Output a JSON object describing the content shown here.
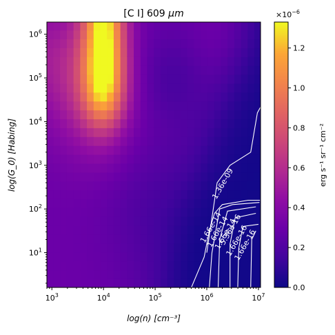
{
  "chart_data": {
    "type": "heatmap",
    "title_prefix": "[C I] 609 ",
    "title_unit": "μm",
    "xlabel": "log(n) [cm⁻³]",
    "ylabel": "log(G_0) [Habing]",
    "x_scale": "log",
    "y_scale": "log",
    "xlim": [
      800,
      11000000
    ],
    "ylim": [
      1.6,
      1900000
    ],
    "x_ticks": [
      {
        "value": 1000,
        "mantissa": "10",
        "exp": "3"
      },
      {
        "value": 10000,
        "mantissa": "10",
        "exp": "4"
      },
      {
        "value": 100000,
        "mantissa": "10",
        "exp": "5"
      },
      {
        "value": 1000000,
        "mantissa": "10",
        "exp": "6"
      },
      {
        "value": 10000000,
        "mantissa": "10",
        "exp": "7"
      }
    ],
    "y_ticks": [
      {
        "value": 10,
        "mantissa": "10",
        "exp": "1"
      },
      {
        "value": 100,
        "mantissa": "10",
        "exp": "2"
      },
      {
        "value": 1000,
        "mantissa": "10",
        "exp": "3"
      },
      {
        "value": 10000,
        "mantissa": "10",
        "exp": "4"
      },
      {
        "value": 100000,
        "mantissa": "10",
        "exp": "5"
      },
      {
        "value": 1000000,
        "mantissa": "10",
        "exp": "6"
      }
    ],
    "colormap": "plasma",
    "colorbar": {
      "label": "erg s⁻¹ sr⁻¹ cm⁻²",
      "multiplier_text": "×10",
      "multiplier_exp": "−6",
      "range": [
        0,
        1.33
      ],
      "ticks": [
        "0.0",
        "0.2",
        "0.4",
        "0.6",
        "0.8",
        "1.0",
        "1.2"
      ]
    },
    "contours": {
      "color": "#ffffff",
      "labels": [
        "1.36e-09",
        "1.66e-14",
        "1.66e-14",
        "1.66e-14",
        "5.36e-16",
        "1.66e-16",
        "1.66e-16"
      ]
    }
  }
}
